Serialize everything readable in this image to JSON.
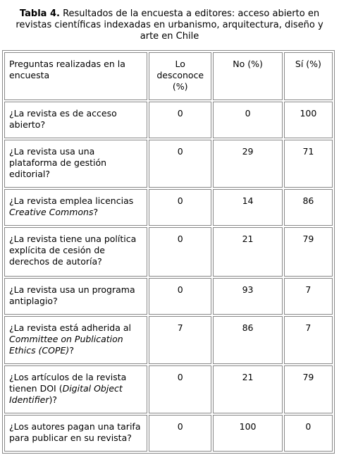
{
  "caption": {
    "label": "Tabla 4.",
    "text": "Resultados de la encuesta a editores: acceso abierto en revistas científicas indexadas en urbanismo, arquitectura, diseño y arte en Chile"
  },
  "table": {
    "header": [
      "Preguntas realizadas en la encuesta",
      "Lo desconoce (%)",
      "No (%)",
      "Sí (%)"
    ],
    "rows": [
      {
        "question": [
          "¿La revista es de acceso abierto?"
        ],
        "values": [
          0,
          0,
          100
        ]
      },
      {
        "question": [
          "¿La revista usa una plataforma de gestión editorial?"
        ],
        "values": [
          0,
          29,
          71
        ]
      },
      {
        "question": [
          "¿La revista emplea licencias ",
          {
            "text": "Creative Commons",
            "italic": true
          },
          "?"
        ],
        "values": [
          0,
          14,
          86
        ]
      },
      {
        "question": [
          "¿La revista tiene una política explícita de cesión de derechos de autoría?"
        ],
        "values": [
          0,
          21,
          79
        ]
      },
      {
        "question": [
          "¿La revista usa un programa antiplagio?"
        ],
        "values": [
          0,
          93,
          7
        ]
      },
      {
        "question": [
          "¿La revista está adherida al ",
          {
            "text": "Committee on Publication Ethics (COPE)",
            "italic": true
          },
          "?"
        ],
        "values": [
          7,
          86,
          7
        ]
      },
      {
        "question": [
          "¿Los artículos de la revista tienen DOI (",
          {
            "text": "Digital Object Identifier",
            "italic": true
          },
          ")?"
        ],
        "values": [
          0,
          21,
          79
        ]
      },
      {
        "question": [
          "¿Los autores pagan una tarifa para publicar en su revista?"
        ],
        "values": [
          0,
          100,
          0
        ]
      }
    ]
  }
}
